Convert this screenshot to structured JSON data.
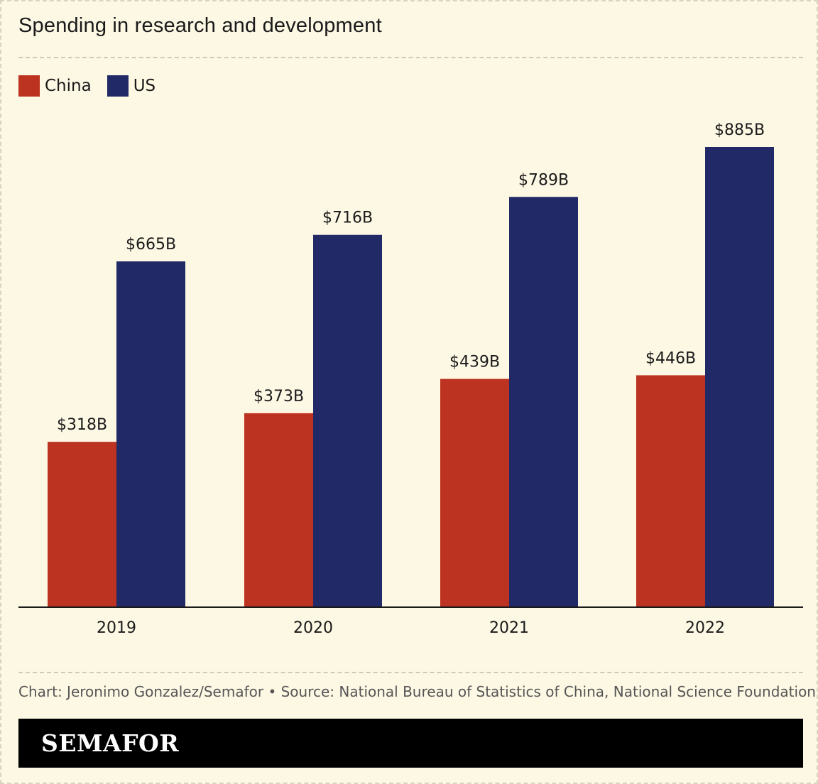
{
  "chart_data": {
    "type": "bar",
    "title": "Spending in research and development",
    "categories": [
      "2019",
      "2020",
      "2021",
      "2022"
    ],
    "series": [
      {
        "name": "China",
        "color": "#bc3321",
        "values": [
          318,
          373,
          439,
          446
        ],
        "labels": [
          "$318B",
          "$373B",
          "$439B",
          "$446B"
        ]
      },
      {
        "name": "US",
        "color": "#212a66",
        "values": [
          665,
          716,
          789,
          885
        ],
        "labels": [
          "$665B",
          "$716B",
          "$789B",
          "$885B"
        ]
      }
    ],
    "xlabel": "",
    "ylabel": "",
    "ylim": [
      0,
      885
    ],
    "grid": false,
    "legend": "top-left"
  },
  "footer": {
    "note": "Chart: Jeronimo Gonzalez/Semafor • Source: National Bureau of Statistics of China, National Science Foundation"
  },
  "brand": {
    "logo_text": "SEMAFOR"
  }
}
